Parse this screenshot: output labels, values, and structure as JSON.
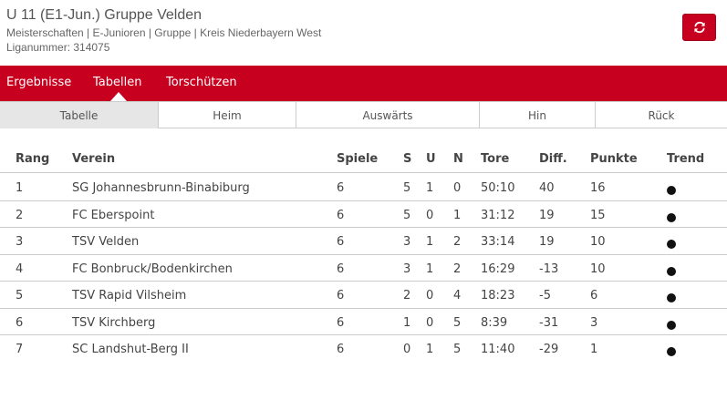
{
  "header": {
    "title": "U 11 (E1-Jun.) Gruppe Velden",
    "subtitle": "Meisterschaften | E-Junioren | Gruppe | Kreis Niederbayern West",
    "liganummer": "Liganummer: 314075"
  },
  "nav": {
    "items": [
      "Ergebnisse",
      "Tabellen",
      "Torschützen"
    ],
    "active": "Tabellen"
  },
  "subtabs": {
    "items": [
      "Tabelle",
      "Heim",
      "Auswärts",
      "Hin",
      "Rück"
    ],
    "active": "Tabelle"
  },
  "table": {
    "columns": [
      "Rang",
      "Verein",
      "Spiele",
      "S",
      "U",
      "N",
      "Tore",
      "Diff.",
      "Punkte",
      "Trend"
    ],
    "rows": [
      {
        "rang": "1",
        "verein": "SG Johannesbrunn-Binabiburg",
        "spiele": "6",
        "s": "5",
        "u": "1",
        "n": "0",
        "tore": "50:10",
        "diff": "40",
        "punkte": "16"
      },
      {
        "rang": "2",
        "verein": "FC Eberspoint",
        "spiele": "6",
        "s": "5",
        "u": "0",
        "n": "1",
        "tore": "31:12",
        "diff": "19",
        "punkte": "15"
      },
      {
        "rang": "3",
        "verein": "TSV Velden",
        "spiele": "6",
        "s": "3",
        "u": "1",
        "n": "2",
        "tore": "33:14",
        "diff": "19",
        "punkte": "10"
      },
      {
        "rang": "4",
        "verein": "FC Bonbruck/Bodenkirchen",
        "spiele": "6",
        "s": "3",
        "u": "1",
        "n": "2",
        "tore": "16:29",
        "diff": "-13",
        "punkte": "10"
      },
      {
        "rang": "5",
        "verein": "TSV Rapid Vilsheim",
        "spiele": "6",
        "s": "2",
        "u": "0",
        "n": "4",
        "tore": "18:23",
        "diff": "-5",
        "punkte": "6"
      },
      {
        "rang": "6",
        "verein": "TSV Kirchberg",
        "spiele": "6",
        "s": "1",
        "u": "0",
        "n": "5",
        "tore": "8:39",
        "diff": "-31",
        "punkte": "3"
      },
      {
        "rang": "7",
        "verein": "SC Landshut-Berg II",
        "spiele": "6",
        "s": "0",
        "u": "1",
        "n": "5",
        "tore": "11:40",
        "diff": "-29",
        "punkte": "1"
      }
    ]
  },
  "colors": {
    "brand_red": "#c8001f",
    "active_tab_bg": "#e6e6e6",
    "trend_dot": "#111111"
  },
  "icons": {
    "refresh": "refresh-icon",
    "trend": "trend-dot-icon"
  }
}
